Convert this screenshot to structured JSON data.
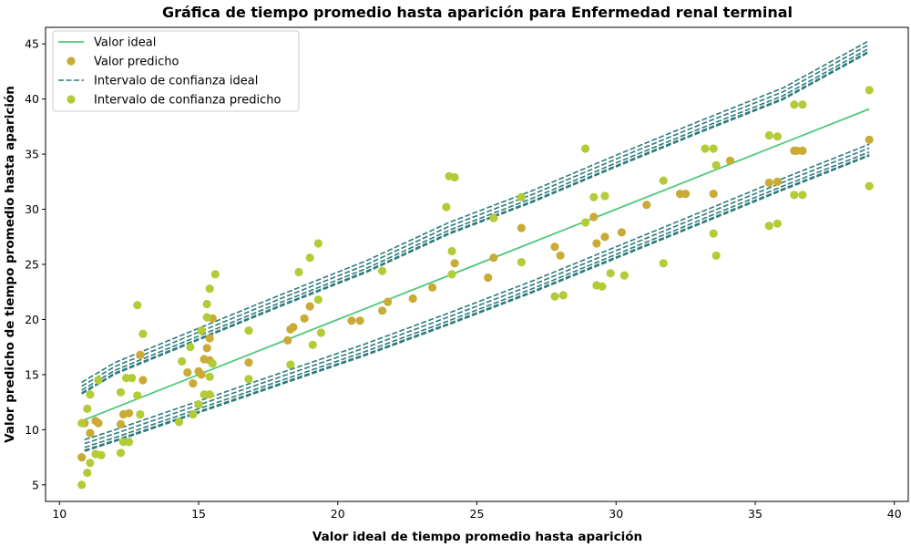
{
  "chart_data": {
    "type": "scatter",
    "title": "Gráfica de tiempo promedio hasta aparición para Enfermedad renal terminal",
    "xlabel": "Valor ideal de tiempo promedio hasta aparición",
    "ylabel": "Valor predicho de tiempo promedio hasta aparición",
    "xlim": [
      9.5,
      40.5
    ],
    "ylim": [
      3.5,
      46.5
    ],
    "xticks": [
      10,
      15,
      20,
      25,
      30,
      35,
      40
    ],
    "yticks": [
      5,
      10,
      15,
      20,
      25,
      30,
      35,
      40,
      45
    ],
    "grid": false,
    "legend_position": "top-left",
    "legend": [
      {
        "label": "Valor ideal",
        "kind": "line",
        "color": "#4cc97a"
      },
      {
        "label": "Valor predicho",
        "kind": "point",
        "color": "#c9ab35"
      },
      {
        "label": "Intervalo de confianza ideal",
        "kind": "dashed",
        "color": "#2d7b7c"
      },
      {
        "label": "Intervalo de confianza predicho",
        "kind": "point",
        "color": "#b1cc36"
      }
    ],
    "ideal_line": {
      "x": [
        10.8,
        39.1
      ],
      "y": [
        10.8,
        39.1
      ]
    },
    "ci_ideal": {
      "upper": [
        [
          10.8,
          13.6
        ],
        [
          12.0,
          15.4
        ],
        [
          15.0,
          18.5
        ],
        [
          18.0,
          21.6
        ],
        [
          21.0,
          24.6
        ],
        [
          24.0,
          28.1
        ],
        [
          27.0,
          31.0
        ],
        [
          30.0,
          34.2
        ],
        [
          33.0,
          37.3
        ],
        [
          36.0,
          40.3
        ],
        [
          39.1,
          44.6
        ]
      ],
      "lower": [
        [
          10.9,
          8.4
        ],
        [
          12.0,
          9.3
        ],
        [
          15.0,
          11.9
        ],
        [
          18.0,
          14.5
        ],
        [
          21.0,
          17.1
        ],
        [
          24.0,
          19.9
        ],
        [
          27.0,
          22.8
        ],
        [
          30.0,
          25.9
        ],
        [
          33.0,
          29.0
        ],
        [
          36.0,
          32.1
        ],
        [
          39.1,
          35.2
        ]
      ]
    },
    "series": [
      {
        "name": "Valor predicho",
        "points": [
          [
            10.8,
            7.5
          ],
          [
            10.9,
            10.6
          ],
          [
            11.1,
            9.7
          ],
          [
            11.3,
            10.8
          ],
          [
            11.4,
            10.6
          ],
          [
            12.2,
            10.5
          ],
          [
            12.3,
            11.4
          ],
          [
            12.5,
            11.5
          ],
          [
            12.9,
            16.8
          ],
          [
            13.0,
            14.5
          ],
          [
            14.6,
            15.2
          ],
          [
            14.8,
            14.2
          ],
          [
            15.0,
            15.3
          ],
          [
            15.1,
            15.0
          ],
          [
            15.2,
            16.4
          ],
          [
            15.3,
            17.4
          ],
          [
            15.4,
            18.3
          ],
          [
            15.4,
            16.3
          ],
          [
            15.5,
            20.1
          ],
          [
            16.8,
            16.1
          ],
          [
            18.2,
            18.1
          ],
          [
            18.3,
            19.1
          ],
          [
            18.4,
            19.3
          ],
          [
            18.8,
            20.1
          ],
          [
            19.0,
            21.2
          ],
          [
            20.5,
            19.9
          ],
          [
            20.8,
            19.9
          ],
          [
            21.6,
            20.8
          ],
          [
            21.8,
            21.6
          ],
          [
            22.7,
            21.9
          ],
          [
            23.4,
            22.9
          ],
          [
            24.2,
            25.1
          ],
          [
            25.4,
            23.8
          ],
          [
            25.6,
            25.6
          ],
          [
            26.6,
            28.3
          ],
          [
            27.8,
            26.6
          ],
          [
            28.0,
            25.8
          ],
          [
            29.2,
            29.3
          ],
          [
            29.3,
            26.9
          ],
          [
            29.6,
            27.5
          ],
          [
            30.2,
            27.9
          ],
          [
            31.1,
            30.4
          ],
          [
            32.3,
            31.4
          ],
          [
            32.5,
            31.4
          ],
          [
            33.5,
            31.4
          ],
          [
            34.1,
            34.4
          ],
          [
            35.5,
            32.4
          ],
          [
            35.8,
            32.5
          ],
          [
            36.4,
            35.3
          ],
          [
            36.5,
            35.3
          ],
          [
            36.7,
            35.3
          ],
          [
            39.1,
            36.3
          ]
        ]
      },
      {
        "name": "Intervalo de confianza predicho",
        "points": [
          [
            10.8,
            5.0
          ],
          [
            10.8,
            10.6
          ],
          [
            11.0,
            6.1
          ],
          [
            11.0,
            11.9
          ],
          [
            11.1,
            7.0
          ],
          [
            11.1,
            13.2
          ],
          [
            11.3,
            7.8
          ],
          [
            11.5,
            7.7
          ],
          [
            11.4,
            14.5
          ],
          [
            12.2,
            7.9
          ],
          [
            12.2,
            13.4
          ],
          [
            12.3,
            8.9
          ],
          [
            12.4,
            14.7
          ],
          [
            12.5,
            8.9
          ],
          [
            12.6,
            14.7
          ],
          [
            12.8,
            13.1
          ],
          [
            12.8,
            21.3
          ],
          [
            12.9,
            11.4
          ],
          [
            13.0,
            18.7
          ],
          [
            14.3,
            10.7
          ],
          [
            14.4,
            16.2
          ],
          [
            14.7,
            17.5
          ],
          [
            14.8,
            11.4
          ],
          [
            15.0,
            12.3
          ],
          [
            15.1,
            19.0
          ],
          [
            15.2,
            13.2
          ],
          [
            15.3,
            20.2
          ],
          [
            15.3,
            21.4
          ],
          [
            15.4,
            13.2
          ],
          [
            15.4,
            14.8
          ],
          [
            15.4,
            22.8
          ],
          [
            15.5,
            16.0
          ],
          [
            15.6,
            24.1
          ],
          [
            16.8,
            14.6
          ],
          [
            16.8,
            19.0
          ],
          [
            18.3,
            15.9
          ],
          [
            18.6,
            24.3
          ],
          [
            19.0,
            25.6
          ],
          [
            19.1,
            17.7
          ],
          [
            19.3,
            21.8
          ],
          [
            19.3,
            26.9
          ],
          [
            19.4,
            18.8
          ],
          [
            21.6,
            24.4
          ],
          [
            23.9,
            30.2
          ],
          [
            24.0,
            33.0
          ],
          [
            24.1,
            24.1
          ],
          [
            24.1,
            26.2
          ],
          [
            24.2,
            32.9
          ],
          [
            25.6,
            29.2
          ],
          [
            26.6,
            31.1
          ],
          [
            26.6,
            25.2
          ],
          [
            27.8,
            22.1
          ],
          [
            28.1,
            22.2
          ],
          [
            28.9,
            28.8
          ],
          [
            28.9,
            35.5
          ],
          [
            29.2,
            31.1
          ],
          [
            29.3,
            23.1
          ],
          [
            29.5,
            23.0
          ],
          [
            29.6,
            31.2
          ],
          [
            29.8,
            24.2
          ],
          [
            30.3,
            24.0
          ],
          [
            31.7,
            25.1
          ],
          [
            31.7,
            32.6
          ],
          [
            33.2,
            35.5
          ],
          [
            33.5,
            35.5
          ],
          [
            33.5,
            27.8
          ],
          [
            33.6,
            25.8
          ],
          [
            33.6,
            34.0
          ],
          [
            35.5,
            36.7
          ],
          [
            35.5,
            28.5
          ],
          [
            35.8,
            36.6
          ],
          [
            35.8,
            28.7
          ],
          [
            36.4,
            31.3
          ],
          [
            36.4,
            39.5
          ],
          [
            36.7,
            31.3
          ],
          [
            36.7,
            39.5
          ],
          [
            39.1,
            32.1
          ],
          [
            39.1,
            40.8
          ]
        ]
      }
    ]
  }
}
